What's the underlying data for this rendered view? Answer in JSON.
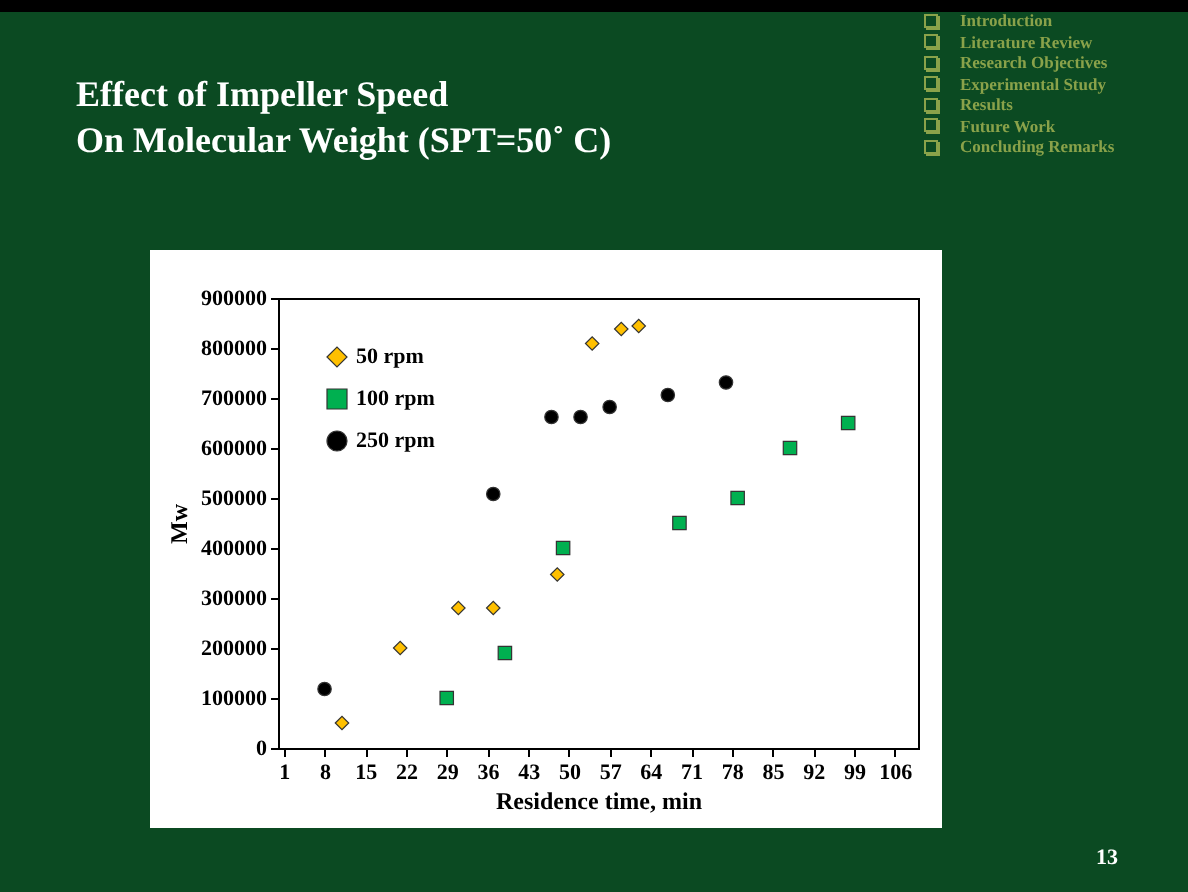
{
  "chart_data": {
    "type": "scatter",
    "title": "Effect of Impeller Speed\nOn Molecular Weight (SPT=50˚ C)",
    "xlabel": "Residence time, min",
    "ylabel": "Mw",
    "annotations": [
      "Introduction",
      "Literature Review",
      "Research Objectives",
      "Experimental Study",
      "Results",
      "Future Work",
      "Concluding Remarks",
      "13"
    ],
    "xlim": [
      0,
      110
    ],
    "xticks": [
      1,
      8,
      15,
      22,
      29,
      36,
      43,
      50,
      57,
      64,
      71,
      78,
      85,
      92,
      99,
      106
    ],
    "ylim": [
      0,
      900000
    ],
    "yticks": [
      0,
      100000,
      200000,
      300000,
      400000,
      500000,
      600000,
      700000,
      800000,
      900000
    ],
    "grid": false,
    "legend": "top left",
    "series": [
      {
        "name": "50 rpm",
        "color": "#ffc000",
        "marker": "diamond",
        "x": [
          11,
          21,
          31,
          37,
          48,
          54,
          59,
          62
        ],
        "values": [
          50000,
          200000,
          280000,
          280000,
          347000,
          809000,
          838000,
          844000
        ]
      },
      {
        "name": "100 rpm",
        "color": "#00b050",
        "marker": "square",
        "x": [
          29,
          39,
          49,
          69,
          79,
          88,
          98
        ],
        "values": [
          100000,
          190000,
          400000,
          450000,
          500000,
          600000,
          650000
        ]
      },
      {
        "name": "250 rpm",
        "color": "#000000",
        "marker": "circle",
        "x": [
          8,
          37,
          47,
          52,
          57,
          67,
          77
        ],
        "values": [
          118000,
          508000,
          662000,
          662000,
          682000,
          706000,
          731000
        ]
      }
    ]
  }
}
